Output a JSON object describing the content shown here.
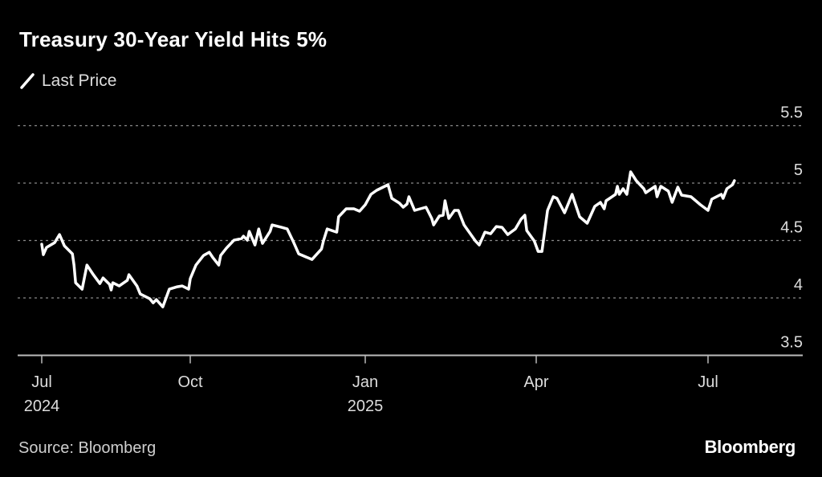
{
  "chart_data": {
    "type": "line",
    "title": "Treasury 30-Year Yield Hits 5%",
    "legend": [
      {
        "label": "Last Price",
        "color": "#ffffff"
      }
    ],
    "legend_position": "top-left",
    "x_unit": "days since 2024-07-01",
    "xlabel": "",
    "ylabel": "",
    "ylim": [
      3.5,
      5.5
    ],
    "yticks": [
      {
        "value": 5.5,
        "label": "5.5"
      },
      {
        "value": 5,
        "label": "5"
      },
      {
        "value": 4.5,
        "label": "4.5"
      },
      {
        "value": 4,
        "label": "4"
      },
      {
        "value": 3.5,
        "label": "3.5"
      }
    ],
    "xticks": [
      {
        "day": 0,
        "label": "Jul",
        "sublabel": "2024"
      },
      {
        "day": 92,
        "label": "Oct",
        "sublabel": ""
      },
      {
        "day": 184,
        "label": "Jan",
        "sublabel": "2025"
      },
      {
        "day": 274,
        "label": "Apr",
        "sublabel": ""
      },
      {
        "day": 365,
        "label": "Jul",
        "sublabel": ""
      }
    ],
    "grid": true,
    "series": [
      {
        "name": "Last Price",
        "color": "#ffffff",
        "points": [
          [
            0,
            4.468
          ],
          [
            1,
            4.377
          ],
          [
            3,
            4.44
          ],
          [
            8,
            4.482
          ],
          [
            11,
            4.552
          ],
          [
            14,
            4.454
          ],
          [
            19,
            4.384
          ],
          [
            20,
            4.286
          ],
          [
            21,
            4.132
          ],
          [
            25,
            4.076
          ],
          [
            28,
            4.286
          ],
          [
            32,
            4.202
          ],
          [
            36,
            4.125
          ],
          [
            38,
            4.174
          ],
          [
            42,
            4.118
          ],
          [
            43,
            4.069
          ],
          [
            44,
            4.132
          ],
          [
            48,
            4.104
          ],
          [
            53,
            4.153
          ],
          [
            54,
            4.202
          ],
          [
            59,
            4.104
          ],
          [
            61,
            4.034
          ],
          [
            67,
            3.992
          ],
          [
            69,
            3.957
          ],
          [
            71,
            3.985
          ],
          [
            75,
            3.922
          ],
          [
            79,
            4.076
          ],
          [
            84,
            4.097
          ],
          [
            87,
            4.104
          ],
          [
            91,
            4.076
          ],
          [
            92,
            4.167
          ],
          [
            95,
            4.286
          ],
          [
            99,
            4.37
          ],
          [
            102,
            4.398
          ],
          [
            104,
            4.349
          ],
          [
            107,
            4.286
          ],
          [
            108,
            4.37
          ],
          [
            111,
            4.433
          ],
          [
            115,
            4.503
          ],
          [
            119,
            4.517
          ],
          [
            120,
            4.538
          ],
          [
            122,
            4.503
          ],
          [
            123,
            4.58
          ],
          [
            126,
            4.461
          ],
          [
            128,
            4.601
          ],
          [
            130,
            4.475
          ],
          [
            134,
            4.58
          ],
          [
            135,
            4.636
          ],
          [
            140,
            4.615
          ],
          [
            143,
            4.601
          ],
          [
            146,
            4.496
          ],
          [
            149,
            4.384
          ],
          [
            153,
            4.356
          ],
          [
            156,
            4.335
          ],
          [
            161,
            4.426
          ],
          [
            162,
            4.496
          ],
          [
            164,
            4.601
          ],
          [
            169,
            4.573
          ],
          [
            170,
            4.706
          ],
          [
            174,
            4.776
          ],
          [
            178,
            4.776
          ],
          [
            181,
            4.755
          ],
          [
            184,
            4.811
          ],
          [
            187,
            4.902
          ],
          [
            190,
            4.937
          ],
          [
            196,
            4.986
          ],
          [
            198,
            4.867
          ],
          [
            202,
            4.825
          ],
          [
            204,
            4.79
          ],
          [
            206,
            4.818
          ],
          [
            207,
            4.881
          ],
          [
            210,
            4.762
          ],
          [
            216,
            4.79
          ],
          [
            219,
            4.692
          ],
          [
            220,
            4.636
          ],
          [
            223,
            4.713
          ],
          [
            225,
            4.72
          ],
          [
            226,
            4.846
          ],
          [
            228,
            4.692
          ],
          [
            231,
            4.762
          ],
          [
            233,
            4.762
          ],
          [
            236,
            4.636
          ],
          [
            239,
            4.566
          ],
          [
            242,
            4.496
          ],
          [
            244,
            4.461
          ],
          [
            247,
            4.573
          ],
          [
            250,
            4.559
          ],
          [
            253,
            4.622
          ],
          [
            256,
            4.615
          ],
          [
            259,
            4.552
          ],
          [
            263,
            4.601
          ],
          [
            266,
            4.685
          ],
          [
            268,
            4.72
          ],
          [
            269,
            4.587
          ],
          [
            273,
            4.496
          ],
          [
            275,
            4.405
          ],
          [
            277,
            4.405
          ],
          [
            280,
            4.762
          ],
          [
            283,
            4.881
          ],
          [
            285,
            4.867
          ],
          [
            289,
            4.741
          ],
          [
            293,
            4.902
          ],
          [
            297,
            4.706
          ],
          [
            301,
            4.65
          ],
          [
            305,
            4.797
          ],
          [
            308,
            4.832
          ],
          [
            310,
            4.776
          ],
          [
            311,
            4.846
          ],
          [
            316,
            4.902
          ],
          [
            317,
            4.972
          ],
          [
            318,
            4.902
          ],
          [
            320,
            4.951
          ],
          [
            322,
            4.902
          ],
          [
            324,
            5.098
          ],
          [
            327,
            5.021
          ],
          [
            331,
            4.951
          ],
          [
            332,
            4.916
          ],
          [
            337,
            4.972
          ],
          [
            338,
            4.881
          ],
          [
            340,
            4.972
          ],
          [
            344,
            4.93
          ],
          [
            346,
            4.832
          ],
          [
            349,
            4.965
          ],
          [
            351,
            4.895
          ],
          [
            356,
            4.881
          ],
          [
            361,
            4.811
          ],
          [
            365,
            4.762
          ],
          [
            367,
            4.86
          ],
          [
            372,
            4.902
          ],
          [
            373,
            4.867
          ],
          [
            375,
            4.951
          ],
          [
            378,
            4.986
          ],
          [
            379,
            5.021
          ]
        ]
      }
    ],
    "source": "Source: Bloomberg",
    "brand": "Bloomberg"
  }
}
